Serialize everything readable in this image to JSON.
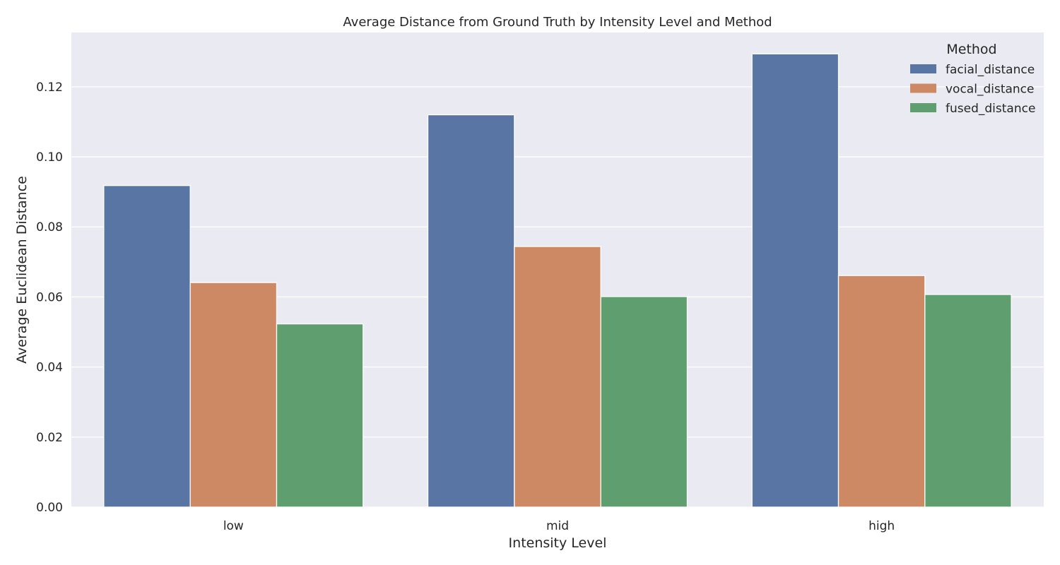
{
  "chart_data": {
    "type": "bar",
    "title": "Average Distance from Ground Truth by Intensity Level and Method",
    "xlabel": "Intensity Level",
    "ylabel": "Average Euclidean Distance",
    "categories": [
      "low",
      "mid",
      "high"
    ],
    "series": [
      {
        "name": "facial_distance",
        "values": [
          0.0918,
          0.112,
          0.1294
        ],
        "color": "#5875a4"
      },
      {
        "name": "vocal_distance",
        "values": [
          0.0641,
          0.0744,
          0.0661
        ],
        "color": "#cc8963"
      },
      {
        "name": "fused_distance",
        "values": [
          0.0523,
          0.0601,
          0.0607
        ],
        "color": "#5f9e6e"
      }
    ],
    "ylim": [
      0,
      0.1355
    ],
    "yticks": [
      "0.00",
      "0.02",
      "0.04",
      "0.06",
      "0.08",
      "0.10",
      "0.12"
    ],
    "legend": {
      "title": "Method",
      "position": "top-right"
    },
    "grid": true,
    "colors": {
      "plot_background": "#eaeaf2",
      "grid": "#ffffff"
    }
  }
}
